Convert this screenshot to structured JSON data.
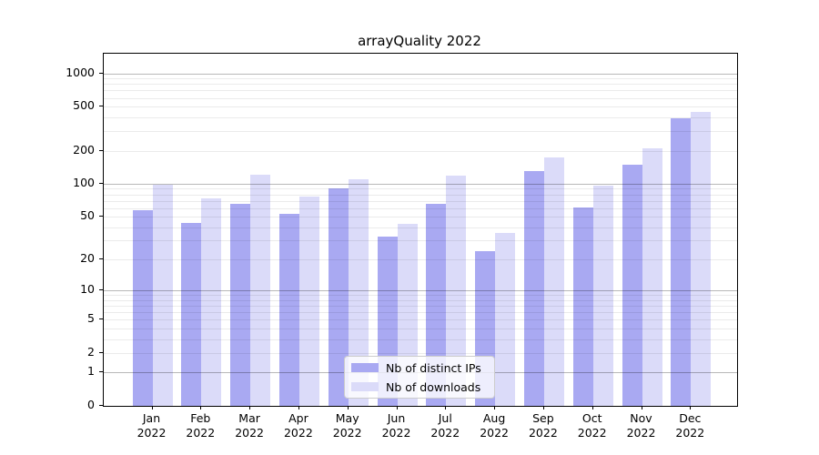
{
  "title": "arrayQuality 2022",
  "legend": {
    "items": [
      {
        "label": "Nb of distinct IPs",
        "color": "#a9a9f2"
      },
      {
        "label": "Nb of downloads",
        "color": "#dbdbf9"
      }
    ]
  },
  "y_axis": {
    "tick_labels": [
      "0",
      "1",
      "2",
      "5",
      "10",
      "20",
      "50",
      "100",
      "200",
      "500",
      "1000"
    ]
  },
  "x_axis": {
    "months": [
      "Jan",
      "Feb",
      "Mar",
      "Apr",
      "May",
      "Jun",
      "Jul",
      "Aug",
      "Sep",
      "Oct",
      "Nov",
      "Dec"
    ],
    "year": "2022"
  },
  "chart_data": {
    "type": "bar",
    "title": "arrayQuality 2022",
    "categories": [
      "Jan 2022",
      "Feb 2022",
      "Mar 2022",
      "Apr 2022",
      "May 2022",
      "Jun 2022",
      "Jul 2022",
      "Aug 2022",
      "Sep 2022",
      "Oct 2022",
      "Nov 2022",
      "Dec 2022"
    ],
    "series": [
      {
        "name": "Nb of distinct IPs",
        "color": "#a9a9f2",
        "values": [
          57,
          44,
          65,
          53,
          91,
          33,
          65,
          24,
          130,
          61,
          150,
          395
        ]
      },
      {
        "name": "Nb of downloads",
        "color": "#dbdbf9",
        "values": [
          98,
          74,
          120,
          76,
          110,
          43,
          118,
          35,
          172,
          96,
          210,
          450
        ]
      }
    ],
    "xlabel": "",
    "ylabel": "",
    "yscale": "log1p",
    "ylim": [
      0,
      1500
    ],
    "yticks": [
      0,
      1,
      2,
      5,
      10,
      20,
      50,
      100,
      200,
      500,
      1000
    ],
    "grid": "horizontal, minor light + major dark, drawn over bars",
    "legend_position": "lower center inside plot",
    "colors": {
      "grid_major": "rgba(0,0,0,0.28)",
      "grid_minor": "rgba(0,0,0,0.08)",
      "spine": "#000000",
      "background": "#ffffff"
    }
  }
}
